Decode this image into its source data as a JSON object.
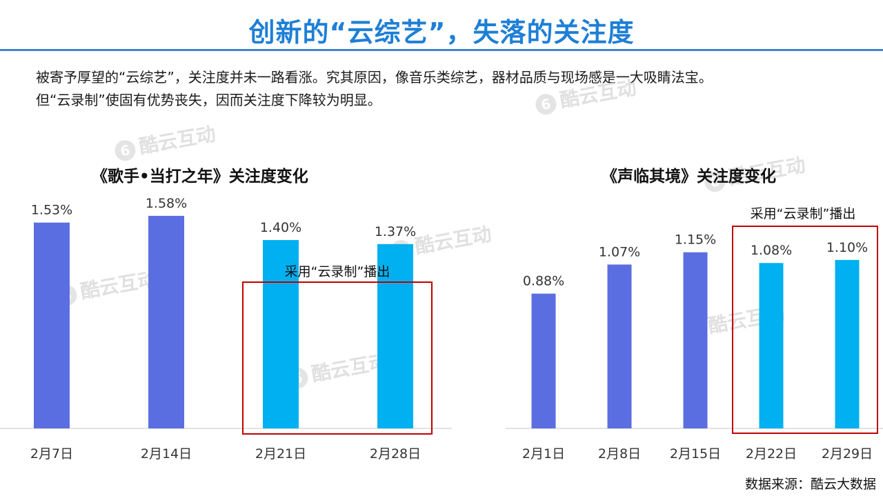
{
  "title": "创新的“云综艺”，失落的关注度",
  "intro": {
    "line1": "被寄予厚望的“云综艺”，关注度并未一路看涨。究其原因，像音乐类综艺，器材品质与现场感是一大吸睛法宝。",
    "line2": "但“云录制”使固有优势丧失，因而关注度下降较为明显。"
  },
  "watermark": "酷云互动",
  "source": "数据来源：酷云大数据",
  "colors": {
    "title": "#1e7fd6",
    "bar_normal": "#5b6ee1",
    "bar_cloud": "#00b0f0",
    "highlight_box": "#c00000"
  },
  "chart_data": [
    {
      "type": "bar",
      "title": "《歌手•当打之年》关注度变化",
      "categories": [
        "2月7日",
        "2月14日",
        "2月21日",
        "2月28日"
      ],
      "values": [
        1.53,
        1.58,
        1.4,
        1.37
      ],
      "value_labels": [
        "1.53%",
        "1.58%",
        "1.40%",
        "1.37%"
      ],
      "highlight": {
        "label": "采用“云录制”播出",
        "indices": [
          2,
          3
        ]
      }
    },
    {
      "type": "bar",
      "title": "《声临其境》关注度变化",
      "categories": [
        "2月1日",
        "2月8日",
        "2月15日",
        "2月22日",
        "2月29日"
      ],
      "values": [
        0.88,
        1.07,
        1.15,
        1.08,
        1.1
      ],
      "value_labels": [
        "0.88%",
        "1.07%",
        "1.15%",
        "1.08%",
        "1.10%"
      ],
      "highlight": {
        "label": "采用“云录制”播出",
        "indices": [
          3,
          4
        ]
      }
    }
  ]
}
